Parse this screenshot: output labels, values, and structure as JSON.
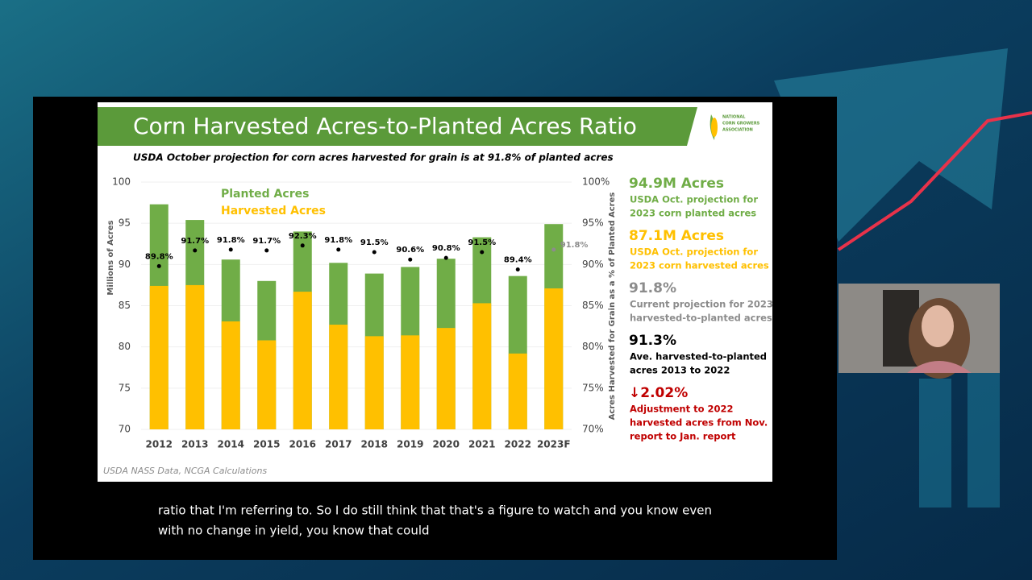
{
  "chart_data": {
    "type": "bar",
    "title": "Corn Harvested Acres-to-Planted Acres Ratio",
    "subtitle": "USDA October projection for corn acres harvested for grain is at 91.8% of planted acres",
    "source": "USDA NASS Data, NCGA Calculations",
    "ylabel": "Millions of Acres",
    "y2label": "Acres Harvested for Grain as a % of Planted Acres",
    "categories": [
      "2012",
      "2013",
      "2014",
      "2015",
      "2016",
      "2017",
      "2018",
      "2019",
      "2020",
      "2021",
      "2022",
      "2023F"
    ],
    "series": [
      {
        "name": "Planted Acres",
        "type": "bar",
        "color": "#70ad47",
        "values": [
          97.3,
          95.4,
          90.6,
          88.0,
          94.0,
          90.2,
          88.9,
          89.7,
          90.7,
          93.3,
          88.6,
          94.9
        ]
      },
      {
        "name": "Harvested Acres",
        "type": "bar",
        "color": "#ffc000",
        "values": [
          87.4,
          87.5,
          83.1,
          80.8,
          86.7,
          82.7,
          81.3,
          81.4,
          82.3,
          85.3,
          79.2,
          87.1
        ]
      },
      {
        "type": "scatter",
        "axis": "y2",
        "color": "#000000",
        "colors": [
          "#000000",
          "#000000",
          "#000000",
          "#000000",
          "#000000",
          "#000000",
          "#000000",
          "#000000",
          "#000000",
          "#000000",
          "#000000",
          "#8c8c8c"
        ],
        "values": [
          89.8,
          91.7,
          91.8,
          91.7,
          92.3,
          91.8,
          91.5,
          90.6,
          90.8,
          91.5,
          89.4,
          91.8
        ],
        "value_labels": [
          "89.8%",
          "91.7%",
          "91.8%",
          "91.7%",
          "92.3%",
          "91.8%",
          "91.5%",
          "90.6%",
          "90.8%",
          "91.5%",
          "89.4%",
          "91.8%"
        ]
      }
    ],
    "ylim": [
      70,
      100
    ],
    "yticks": [
      70,
      75,
      80,
      85,
      90,
      95,
      100
    ],
    "y2lim": [
      70,
      100
    ],
    "y2ticks": [
      {
        "value": 70,
        "label": "70%"
      },
      {
        "value": 75,
        "label": "75%"
      },
      {
        "value": 80,
        "label": "80%"
      },
      {
        "value": 85,
        "label": "85%"
      },
      {
        "value": 90,
        "label": "90%"
      },
      {
        "value": 95,
        "label": "95%"
      },
      {
        "value": 100,
        "label": "100%"
      }
    ],
    "grid": true
  },
  "logo": [
    "NATIONAL",
    "CORN GROWERS",
    "ASSOCIATION"
  ],
  "stats": [
    {
      "value": "94.9M Acres",
      "color": "#70ad47",
      "lines": [
        "USDA Oct. projection for",
        "2023 corn planted acres"
      ]
    },
    {
      "value": "87.1M Acres",
      "color": "#ffc000",
      "lines": [
        "USDA Oct. projection for",
        "2023 corn harvested acres"
      ]
    },
    {
      "value": "91.8%",
      "color": "#8c8c8c",
      "lines": [
        "Current projection for 2023",
        "harvested-to-planted acres"
      ]
    },
    {
      "value": "91.3%",
      "color": "#000000",
      "lines": [
        "Ave. harvested-to-planted",
        "acres 2013 to 2022"
      ]
    },
    {
      "value": "↓2.02%",
      "color": "#c00000",
      "lines": [
        "Adjustment to 2022",
        "harvested acres from Nov.",
        "report to Jan. report"
      ]
    }
  ],
  "captions": [
    "ratio that I'm referring to. So I do still think that that's a figure to watch and you know even",
    "with no change in yield, you know that could"
  ]
}
